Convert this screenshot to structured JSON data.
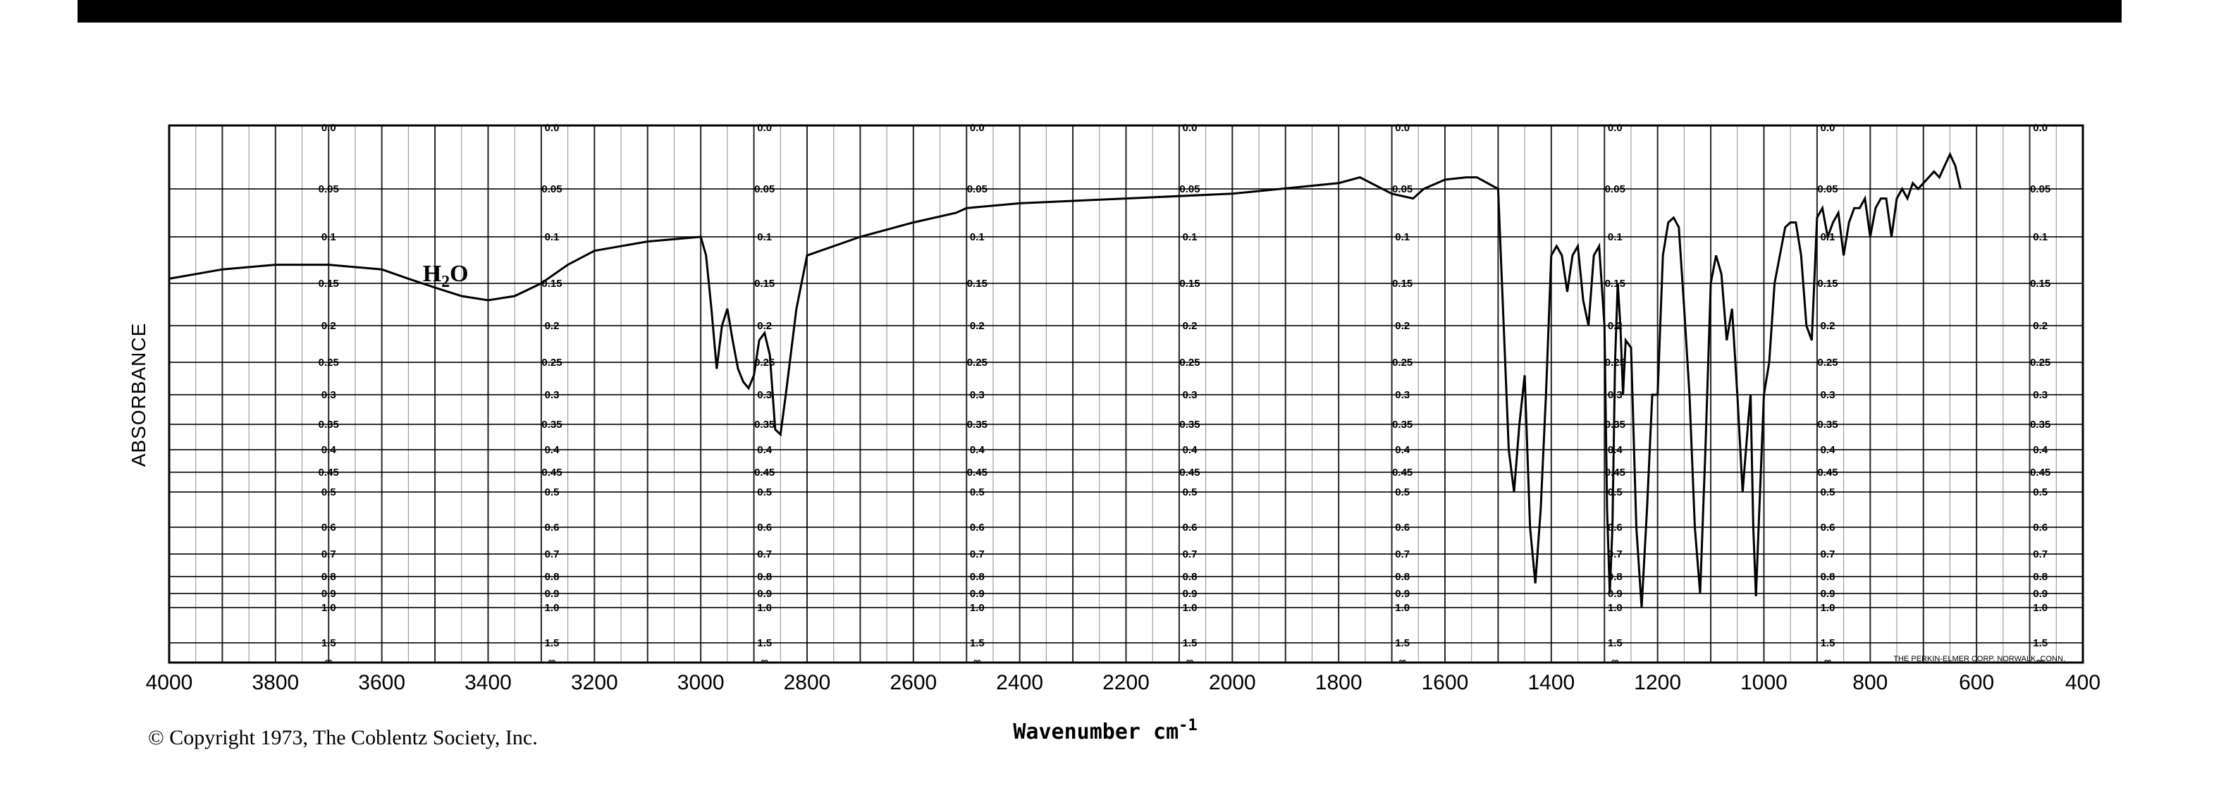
{
  "chart_data": {
    "type": "line",
    "xlabel": "Wavenumber cm-1",
    "ylabel": "ABSORBANCE",
    "x_ticks": [
      "4000",
      "3800",
      "3600",
      "3400",
      "3200",
      "3000",
      "2800",
      "2600",
      "2400",
      "2200",
      "2000",
      "1800",
      "1600",
      "1400",
      "1200",
      "1000",
      "800",
      "600",
      "400"
    ],
    "xlim": [
      4000,
      400
    ],
    "y_ticks": [
      "0.0",
      "0.05",
      "0.1",
      "0.15",
      "0.2",
      "0.25",
      "0.3",
      "0.35",
      "0.4",
      "0.45",
      "0.5",
      "0.6",
      "0.7",
      "0.8",
      "0.9",
      "1.0",
      "1.5",
      "∞"
    ],
    "grid": true,
    "annotations": [
      {
        "text": "H2O",
        "x": 3470,
        "y": 0.14
      }
    ],
    "footnote": "THE PERKIN-ELMER CORP. NORWALK, CONN.",
    "series": [
      {
        "x": [
          4000,
          3950,
          3900,
          3800,
          3700,
          3600,
          3550,
          3500,
          3450,
          3400,
          3350,
          3300,
          3250,
          3200,
          3100,
          3000,
          2990,
          2980,
          2970,
          2960,
          2950,
          2940,
          2930,
          2920,
          2910,
          2900,
          2890,
          2880,
          2870,
          2860,
          2850,
          2840,
          2820,
          2800,
          2700,
          2600,
          2520,
          2500,
          2400,
          2200,
          2000,
          1800,
          1760,
          1700,
          1660,
          1640,
          1600,
          1560,
          1540,
          1500,
          1480,
          1470,
          1460,
          1450,
          1440,
          1430,
          1420,
          1410,
          1400,
          1390,
          1380,
          1370,
          1360,
          1350,
          1340,
          1330,
          1320,
          1310,
          1300,
          1295,
          1290,
          1285,
          1280,
          1275,
          1270,
          1265,
          1260,
          1250,
          1240,
          1230,
          1220,
          1210,
          1200,
          1190,
          1180,
          1170,
          1160,
          1150,
          1140,
          1130,
          1120,
          1110,
          1100,
          1090,
          1080,
          1070,
          1060,
          1050,
          1040,
          1030,
          1025,
          1020,
          1015,
          1010,
          1000,
          990,
          980,
          970,
          960,
          950,
          940,
          930,
          920,
          910,
          900,
          890,
          880,
          870,
          860,
          850,
          840,
          830,
          820,
          810,
          800,
          790,
          780,
          770,
          760,
          750,
          740,
          730,
          720,
          710,
          700,
          690,
          680,
          670,
          660,
          650,
          640,
          630
        ],
        "y": [
          0.145,
          0.14,
          0.135,
          0.13,
          0.13,
          0.135,
          0.145,
          0.155,
          0.165,
          0.17,
          0.165,
          0.15,
          0.13,
          0.115,
          0.105,
          0.1,
          0.12,
          0.18,
          0.26,
          0.2,
          0.18,
          0.22,
          0.26,
          0.28,
          0.29,
          0.27,
          0.22,
          0.21,
          0.24,
          0.36,
          0.37,
          0.3,
          0.18,
          0.12,
          0.1,
          0.085,
          0.075,
          0.07,
          0.065,
          0.06,
          0.055,
          0.045,
          0.04,
          0.055,
          0.06,
          0.05,
          0.042,
          0.04,
          0.04,
          0.05,
          0.4,
          0.5,
          0.35,
          0.27,
          0.6,
          0.84,
          0.55,
          0.3,
          0.12,
          0.11,
          0.12,
          0.16,
          0.12,
          0.11,
          0.17,
          0.2,
          0.12,
          0.11,
          0.2,
          0.55,
          0.9,
          0.6,
          0.25,
          0.15,
          0.2,
          0.3,
          0.22,
          0.23,
          0.6,
          1.0,
          0.55,
          0.3,
          0.3,
          0.12,
          0.085,
          0.08,
          0.09,
          0.18,
          0.3,
          0.6,
          0.9,
          0.4,
          0.15,
          0.12,
          0.14,
          0.22,
          0.18,
          0.3,
          0.5,
          0.35,
          0.3,
          0.6,
          0.92,
          0.6,
          0.3,
          0.25,
          0.15,
          0.12,
          0.09,
          0.085,
          0.085,
          0.12,
          0.2,
          0.22,
          0.08,
          0.07,
          0.1,
          0.085,
          0.075,
          0.12,
          0.085,
          0.07,
          0.07,
          0.06,
          0.1,
          0.07,
          0.06,
          0.06,
          0.1,
          0.06,
          0.05,
          0.06,
          0.045,
          0.05,
          0.045,
          0.04,
          0.035,
          0.04,
          0.03,
          0.02,
          0.03,
          0.05
        ]
      }
    ]
  },
  "copyright": "© Copyright 1973, The Coblentz Society, Inc."
}
